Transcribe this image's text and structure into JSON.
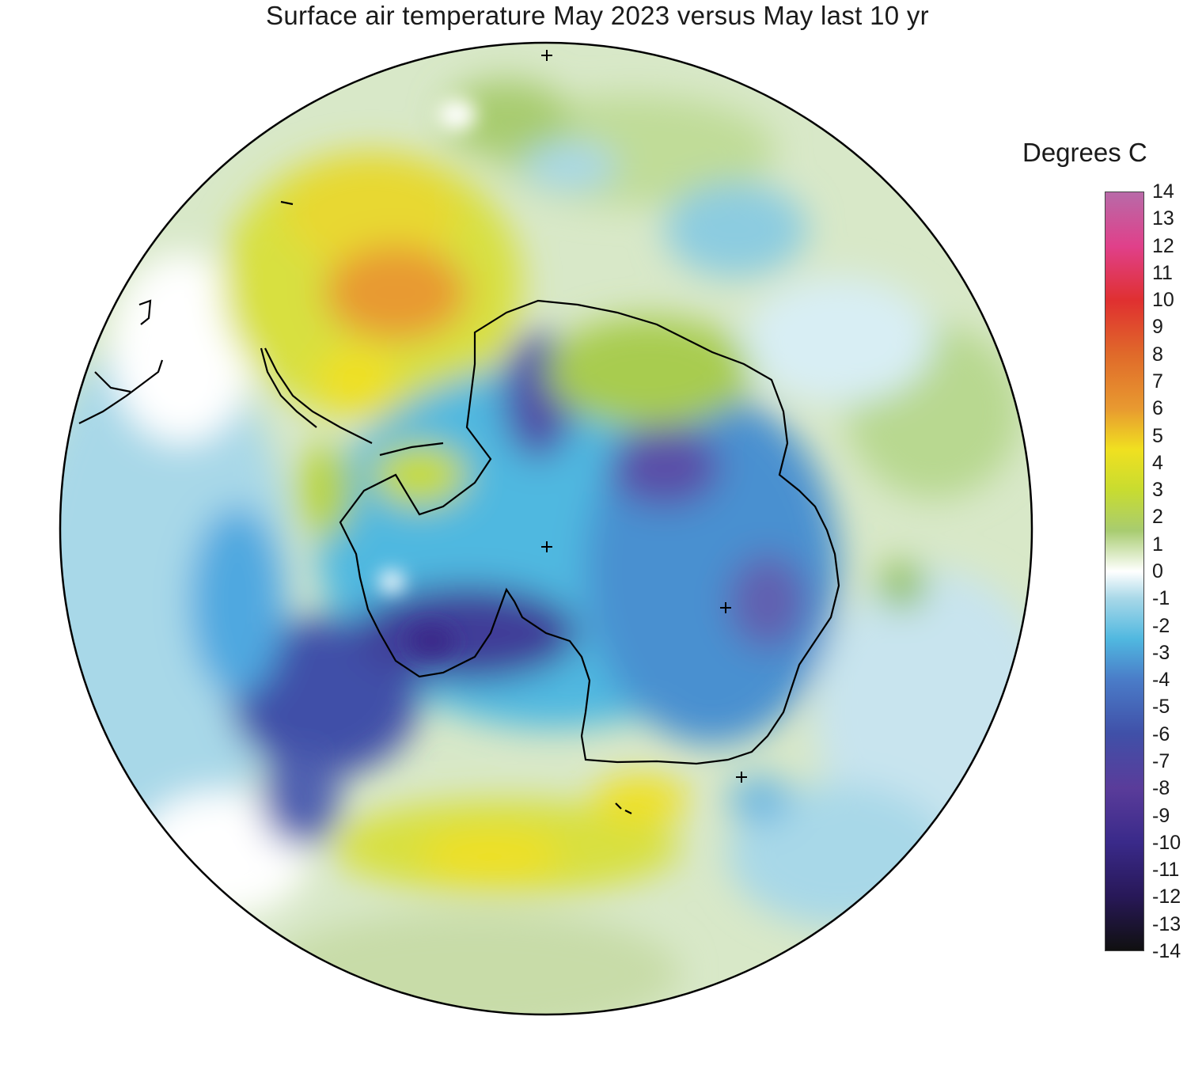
{
  "title": "Surface air temperature May 2023 versus May last 10 yr",
  "unit_label": "Degrees C",
  "colorbar": {
    "min": -14,
    "max": 14,
    "ticks": [
      "14",
      "13",
      "12",
      "11",
      "10",
      "9",
      "8",
      "7",
      "6",
      "5",
      "4",
      "3",
      "2",
      "1",
      "0",
      "-1",
      "-2",
      "-3",
      "-4",
      "-5",
      "-6",
      "-7",
      "-8",
      "-9",
      "-10",
      "-11",
      "-12",
      "-13",
      "-14"
    ],
    "stops": [
      {
        "value": 14,
        "color": "#b86aa8"
      },
      {
        "value": 12,
        "color": "#e0408a"
      },
      {
        "value": 10,
        "color": "#e03030"
      },
      {
        "value": 8,
        "color": "#e06a2a"
      },
      {
        "value": 6,
        "color": "#e89a30"
      },
      {
        "value": 4.5,
        "color": "#f0e020"
      },
      {
        "value": 3,
        "color": "#c8dc30"
      },
      {
        "value": 1.5,
        "color": "#a8cc70"
      },
      {
        "value": 0,
        "color": "#ffffff"
      },
      {
        "value": -1,
        "color": "#a8d8e8"
      },
      {
        "value": -2.5,
        "color": "#50b8e0"
      },
      {
        "value": -4,
        "color": "#4a7cc8"
      },
      {
        "value": -6,
        "color": "#4050a8"
      },
      {
        "value": -8,
        "color": "#5a3c9a"
      },
      {
        "value": -10,
        "color": "#3a2a8a"
      },
      {
        "value": -12,
        "color": "#281858"
      },
      {
        "value": -14,
        "color": "#101010"
      }
    ]
  },
  "map": {
    "projection": "south-polar-stereographic",
    "region": "Antarctica and Southern Ocean",
    "pole_markers": 4
  }
}
